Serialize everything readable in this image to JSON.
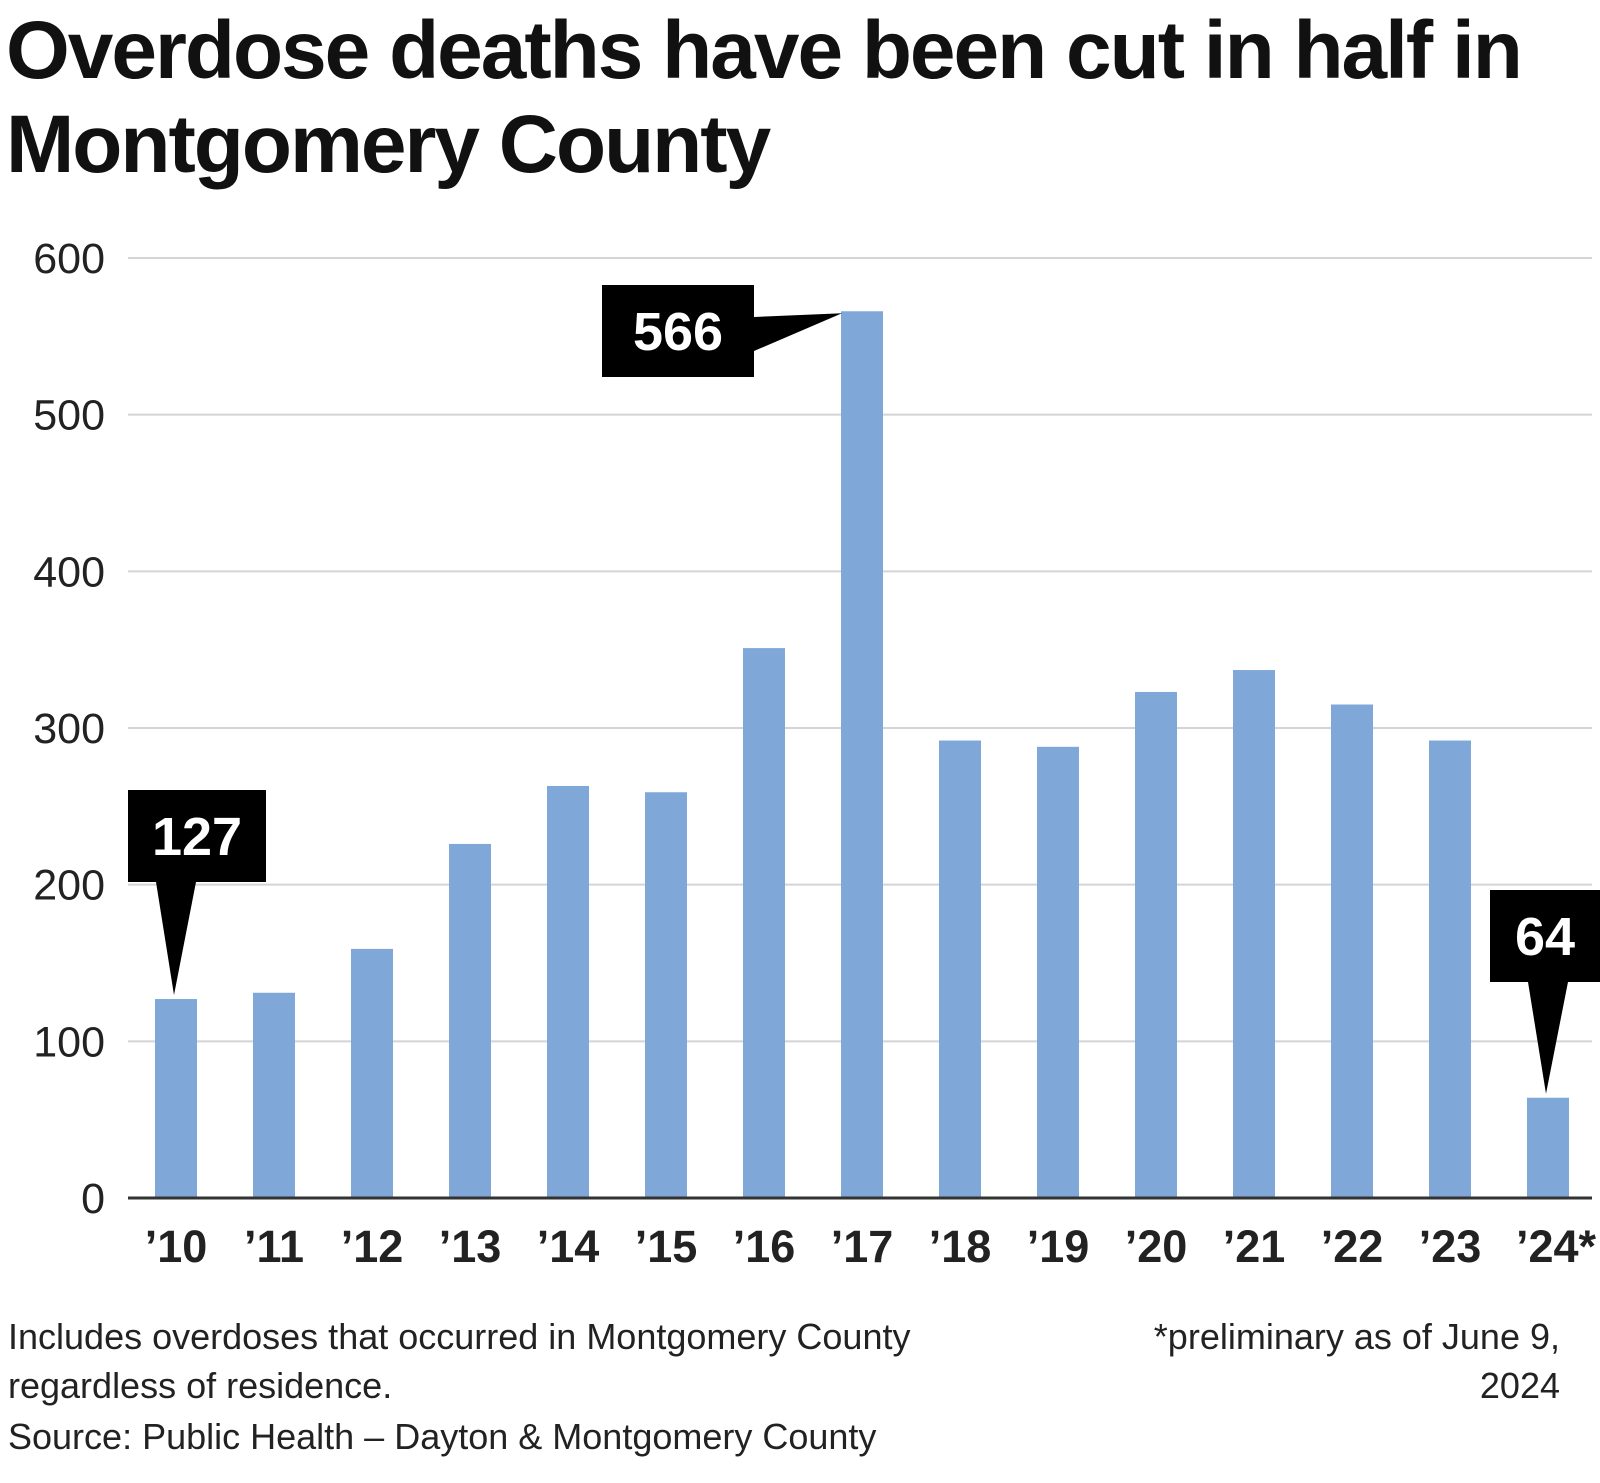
{
  "title": "Overdose deaths have been cut in half in Montgomery County",
  "chart_data": {
    "type": "bar",
    "title": "Overdose deaths have been cut in half in Montgomery County",
    "xlabel": "",
    "ylabel": "",
    "categories": [
      "’10",
      "’11",
      "’12",
      "’13",
      "’14",
      "’15",
      "’16",
      "’17",
      "’18",
      "’19",
      "’20",
      "’21",
      "’22",
      "’23",
      "’24*"
    ],
    "values": [
      127,
      131,
      159,
      226,
      263,
      259,
      351,
      566,
      292,
      288,
      323,
      337,
      315,
      292,
      64
    ],
    "ylim": [
      0,
      600
    ],
    "yticks": [
      0,
      100,
      200,
      300,
      400,
      500,
      600
    ],
    "grid": true,
    "bar_color": "#7fa7d8",
    "callout_color": "#000000",
    "annotations": [
      {
        "category_index": 0,
        "label": "127"
      },
      {
        "category_index": 7,
        "label": "566"
      },
      {
        "category_index": 14,
        "label": "64"
      }
    ]
  },
  "notes": {
    "includes": "Includes overdoses that occurred in Montgomery County regardless of residence.",
    "preliminary": "*preliminary as of June 9, 2024",
    "source": "Source: Public Health – Dayton & Montgomery County"
  }
}
